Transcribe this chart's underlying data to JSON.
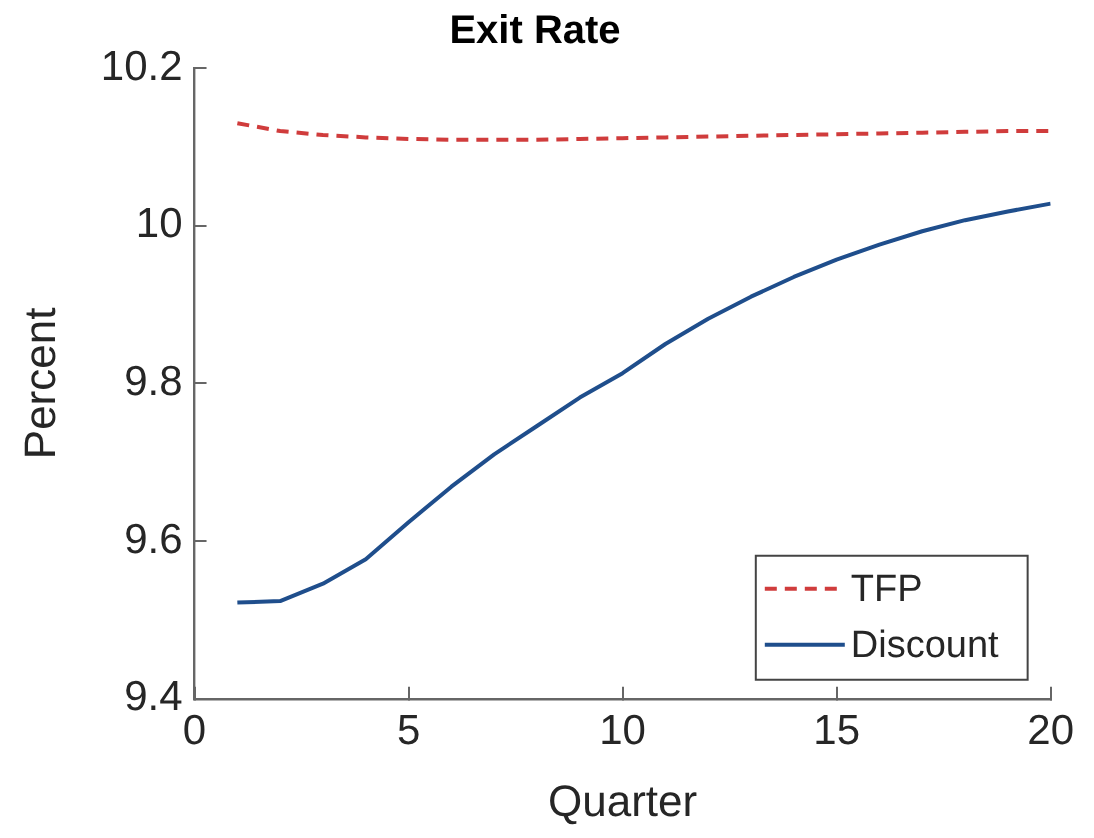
{
  "chart_data": {
    "type": "line",
    "title": "Exit Rate",
    "xlabel": "Quarter",
    "ylabel": "Percent",
    "x": [
      1,
      2,
      3,
      4,
      5,
      6,
      7,
      8,
      9,
      10,
      11,
      12,
      13,
      14,
      15,
      16,
      17,
      18,
      19,
      20
    ],
    "series": [
      {
        "name": "TFP",
        "color": "#d03c3c",
        "line_style": "dashed",
        "values": [
          10.13,
          10.12,
          10.115,
          10.112,
          10.11,
          10.109,
          10.109,
          10.109,
          10.11,
          10.111,
          10.112,
          10.113,
          10.114,
          10.115,
          10.116,
          10.117,
          10.118,
          10.119,
          10.12,
          10.12
        ]
      },
      {
        "name": "Discount",
        "color": "#1f4e8c",
        "line_style": "solid",
        "values": [
          9.522,
          9.524,
          9.546,
          9.577,
          9.624,
          9.669,
          9.71,
          9.746,
          9.782,
          9.813,
          9.85,
          9.882,
          9.91,
          9.935,
          9.957,
          9.976,
          9.993,
          10.007,
          10.018,
          10.028
        ]
      }
    ],
    "xlim": [
      0,
      20
    ],
    "xticks": [
      0,
      5,
      10,
      15,
      20
    ],
    "ylim": [
      9.4,
      10.2
    ],
    "yticks": [
      9.4,
      9.6,
      9.8,
      10,
      10.2
    ],
    "grid": false,
    "legend": "bottom right",
    "marker": "none"
  }
}
